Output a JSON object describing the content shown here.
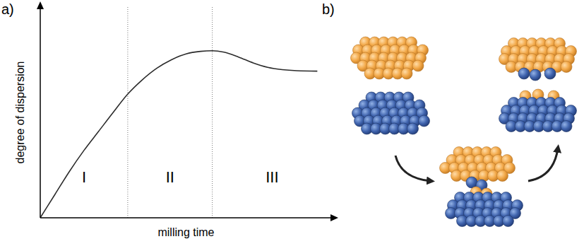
{
  "chart_data": {
    "type": "line",
    "panel": "a)",
    "x_label": "milling time",
    "y_label": "degree of dispersion",
    "xlim": [
      0,
      100
    ],
    "ylim": [
      0,
      100
    ],
    "tick_labels": false,
    "regions": [
      {
        "label": "I",
        "start": 0,
        "end": 30
      },
      {
        "label": "II",
        "start": 30,
        "end": 59
      },
      {
        "label": "III",
        "start": 59,
        "end": 100
      }
    ],
    "x": [
      0,
      5,
      10,
      15,
      20,
      25,
      30,
      35,
      40,
      45,
      50,
      55,
      59,
      63,
      68,
      73,
      78,
      83,
      88,
      95
    ],
    "values": [
      0,
      11,
      22,
      32,
      41,
      50,
      58.7,
      65.5,
      71,
      75,
      77.8,
      79,
      79.3,
      78.6,
      76.3,
      73.5,
      71.4,
      70.3,
      69.8,
      69.6
    ],
    "color": "#2b2b2b"
  },
  "diagram": {
    "panel": "b)"
  }
}
